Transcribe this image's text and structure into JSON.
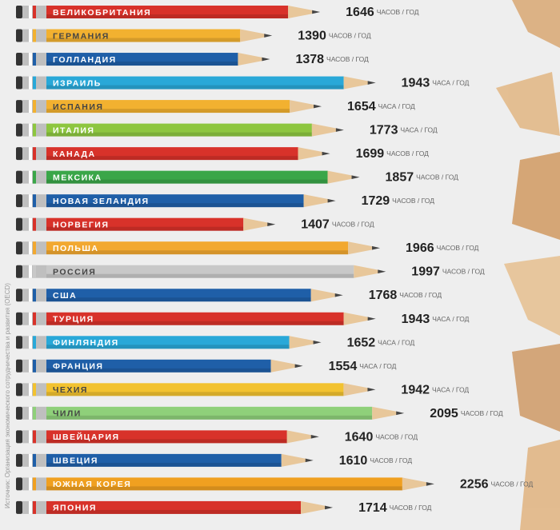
{
  "chart_data": {
    "type": "pencil-bar",
    "source": "Источник: Организация экономического сотрудничества и развития (OECD)",
    "categories": [
      "ВЕЛИКОБРИТАНИЯ",
      "ГЕРМАНИЯ",
      "ГОЛЛАНДИЯ",
      "ИЗРАИЛЬ",
      "ИСПАНИЯ",
      "ИТАЛИЯ",
      "КАНАДА",
      "МЕКСИКА",
      "НОВАЯ ЗЕЛАНДИЯ",
      "НОРВЕГИЯ",
      "ПОЛЬША",
      "РОССИЯ",
      "США",
      "ТУРЦИЯ",
      "ФИНЛЯНДИЯ",
      "ФРАНЦИЯ",
      "ЧЕХИЯ",
      "ЧИЛИ",
      "ШВЕЙЦАРИЯ",
      "ШВЕЦИЯ",
      "ЮЖНАЯ КОРЕЯ",
      "ЯПОНИЯ"
    ],
    "values": [
      1646,
      1390,
      1378,
      1943,
      1654,
      1773,
      1699,
      1857,
      1729,
      1407,
      1966,
      1997,
      1768,
      1943,
      1652,
      1554,
      1942,
      2095,
      1640,
      1610,
      2256,
      1714
    ],
    "units": [
      "ЧАСОВ / ГОД",
      "ЧАСОВ / ГОД",
      "ЧАСОВ / ГОД",
      "ЧАСА / ГОД",
      "ЧАСА / ГОД",
      "ЧАСА / ГОД",
      "ЧАСОВ / ГОД",
      "ЧАСОВ / ГОД",
      "ЧАСОВ / ГОД",
      "ЧАСОВ / ГОД",
      "ЧАСОВ / ГОД",
      "ЧАСОВ / ГОД",
      "ЧАСОВ / ГОД",
      "ЧАСА / ГОД",
      "ЧАСА / ГОД",
      "ЧАСА / ГОД",
      "ЧАСА / ГОД",
      "ЧАСОВ / ГОД",
      "ЧАСОВ / ГОД",
      "ЧАСОВ / ГОД",
      "ЧАСОВ / ГОД",
      "ЧАСОВ / ГОД"
    ],
    "colors": [
      "#d8322a",
      "#f2b130",
      "#1f5fa8",
      "#29a8d8",
      "#f2b130",
      "#8dc63f",
      "#d8322a",
      "#3aa648",
      "#1f5fa8",
      "#d8322a",
      "#f2a830",
      "#c8c8c8",
      "#1f5fa8",
      "#d8322a",
      "#29a8d8",
      "#1f5fa8",
      "#f2c230",
      "#8fd07a",
      "#d8322a",
      "#1f5fa8",
      "#f0a020",
      "#d8322a"
    ]
  }
}
